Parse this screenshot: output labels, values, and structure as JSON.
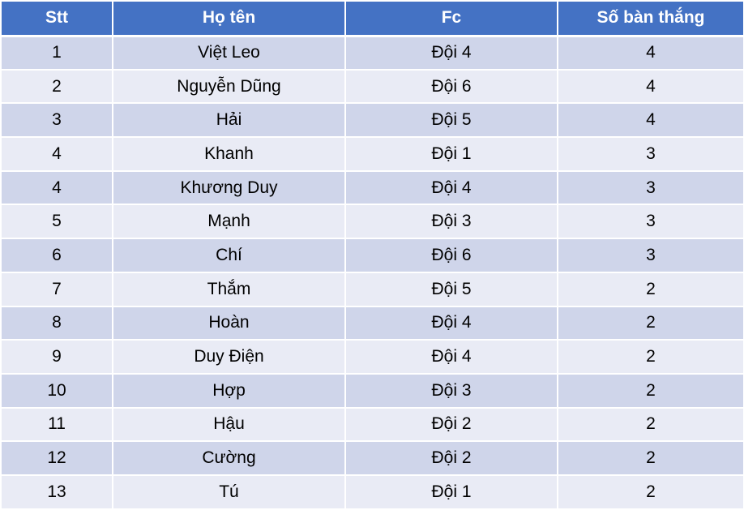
{
  "table": {
    "headers": [
      "Stt",
      "Họ tên",
      "Fc",
      "Số bàn thắng"
    ],
    "rows": [
      [
        "1",
        "Việt Leo",
        "Đội 4",
        "4"
      ],
      [
        "2",
        "Nguyễn Dũng",
        "Đội 6",
        "4"
      ],
      [
        "3",
        "Hải",
        "Đội 5",
        "4"
      ],
      [
        "4",
        "Khanh",
        "Đội 1",
        "3"
      ],
      [
        "4",
        "Khương Duy",
        "Đội 4",
        "3"
      ],
      [
        "5",
        "Mạnh",
        "Đội 3",
        "3"
      ],
      [
        "6",
        "Chí",
        "Đội 6",
        "3"
      ],
      [
        "7",
        "Thắm",
        "Đội 5",
        "2"
      ],
      [
        "8",
        "Hoàn",
        "Đội 4",
        "2"
      ],
      [
        "9",
        "Duy Điện",
        "Đội 4",
        "2"
      ],
      [
        "10",
        "Hợp",
        "Đội 3",
        "2"
      ],
      [
        "11",
        "Hậu",
        "Đội 2",
        "2"
      ],
      [
        "12",
        "Cường",
        "Đội 2",
        "2"
      ],
      [
        "13",
        "Tú",
        "Đội 1",
        "2"
      ]
    ]
  },
  "colors": {
    "header_bg": "#4472c4",
    "row_band_dark": "#cfd5ea",
    "row_band_light": "#e9ebf5"
  }
}
